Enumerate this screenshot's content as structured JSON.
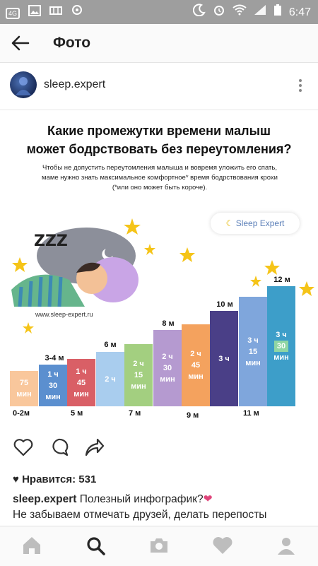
{
  "status_bar": {
    "badge": "4G",
    "time": "6:47"
  },
  "app_bar": {
    "title": "Фото"
  },
  "post": {
    "username": "sleep.expert"
  },
  "infographic": {
    "title_line1": "Какие промежутки времени малыш",
    "title_line2": "может бодрствовать без переутомления?",
    "sub_line1": "Чтобы не допустить переутомления  малыша и вовремя уложить его спать,",
    "sub_line2": "маме  нужно знать максимальное комфортное*  время бодрствования  крохи",
    "sub_line3": "(*или оно может быть короче).",
    "brand": "Sleep Expert",
    "site": "www.sleep-expert.ru",
    "zzz": "ZZZ",
    "colors": {
      "bar1": "#f9c79c",
      "bar2": "#5b8fcf",
      "bar3": "#d95f66",
      "bar4": "#a9cdee",
      "bar5": "#a3cf80",
      "bar6": "#b59ad0",
      "bar7": "#f4a25e",
      "bar8": "#4a3f87",
      "bar9": "#7fa6dc",
      "bar10": "#3d9ec9"
    },
    "bars": [
      {
        "top": "",
        "l1": "75",
        "l2": "мин",
        "l3": ""
      },
      {
        "top": "3-4 м",
        "l1": "1 ч",
        "l2": "30",
        "l3": "мин"
      },
      {
        "top": "",
        "l1": "1 ч",
        "l2": "45",
        "l3": "мин"
      },
      {
        "top": "6 м",
        "l1": "2 ч",
        "l2": "",
        "l3": ""
      },
      {
        "top": "",
        "l1": "2 ч",
        "l2": "15",
        "l3": "мин"
      },
      {
        "top": "8 м",
        "l1": "2 ч",
        "l2": "30",
        "l3": "мин"
      },
      {
        "top": "",
        "l1": "2 ч",
        "l2": "45",
        "l3": "мин"
      },
      {
        "top": "10 м",
        "l1": "3 ч",
        "l2": "",
        "l3": ""
      },
      {
        "top": "",
        "l1": "3 ч",
        "l2": "15",
        "l3": "мин"
      },
      {
        "top": "12 м",
        "l1": "3 ч",
        "l2": "30",
        "l3": "мин"
      }
    ],
    "ages": [
      "0-2м",
      "5 м",
      "7 м",
      "9 м",
      "11 м"
    ]
  },
  "actions": {
    "likes": "Нравится: 531"
  },
  "caption": {
    "user": "sleep.expert",
    "text": "Полезный инфографик?",
    "emoji": "❤",
    "line2": "Не забываем отмечать друзей, делать перепосты"
  }
}
